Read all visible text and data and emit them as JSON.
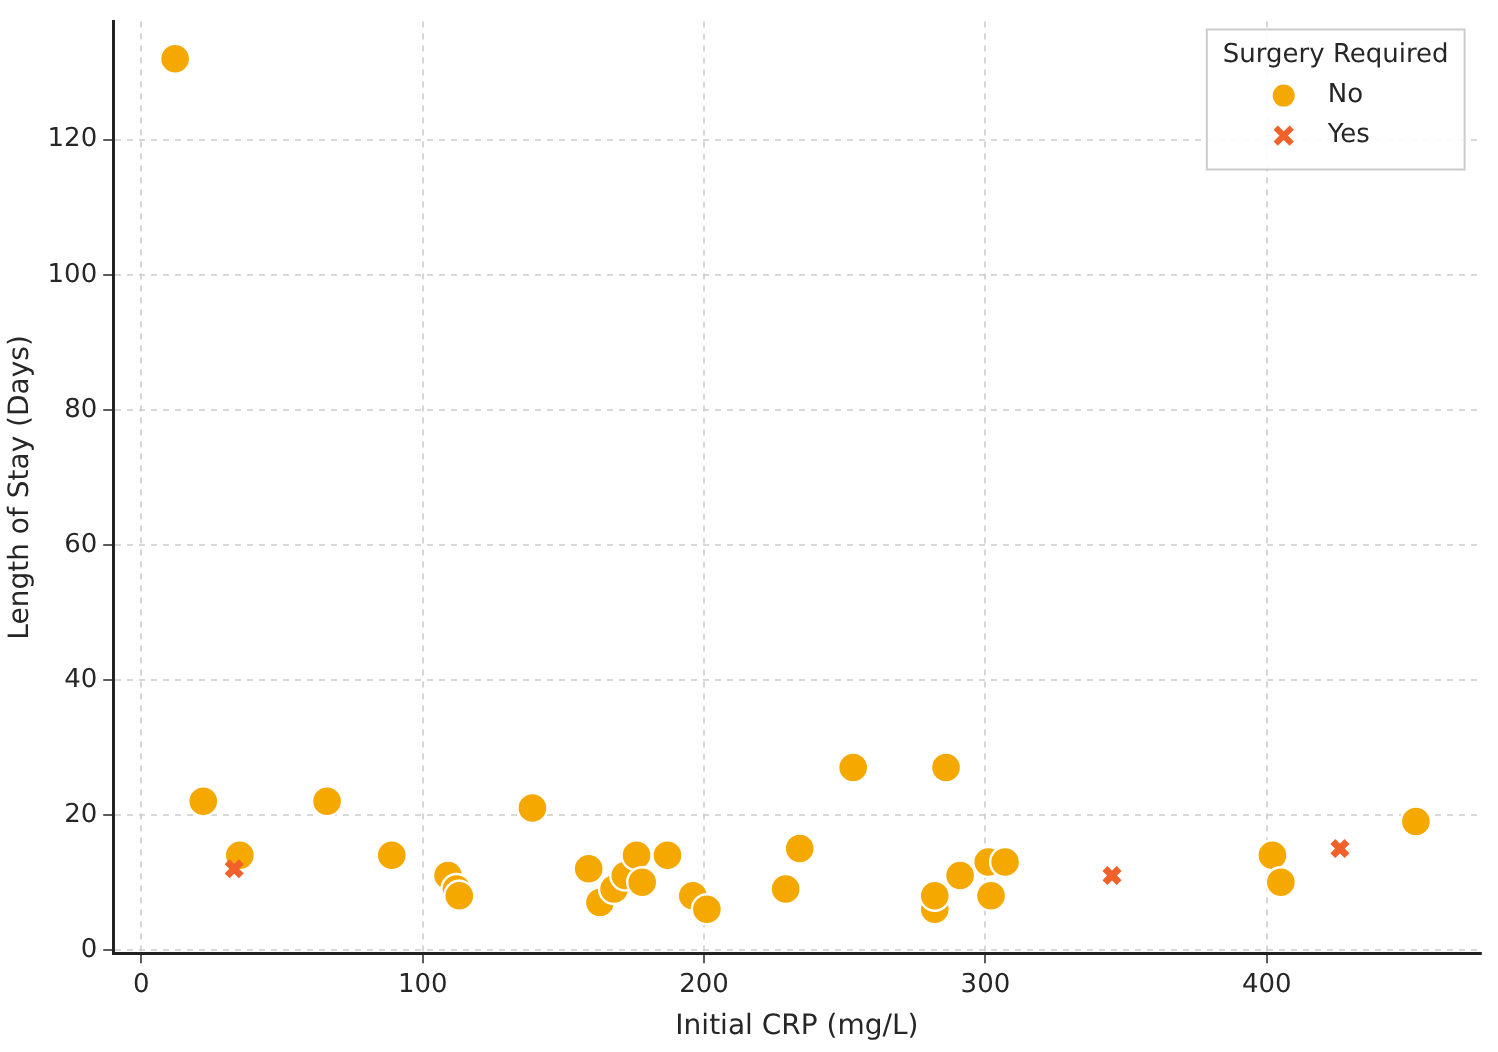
{
  "chart_data": {
    "type": "scatter",
    "xlabel": "Initial CRP (mg/L)",
    "ylabel": "Length of Stay (Days)",
    "legend_title": "Surgery Required",
    "legend": "top right",
    "grid": true,
    "xlim": [
      -10,
      476
    ],
    "xticks": [
      0,
      100,
      200,
      300,
      400
    ],
    "ylim": [
      -0.5,
      137.5
    ],
    "yticks": [
      0,
      20,
      40,
      60,
      80,
      100,
      120
    ],
    "series": [
      {
        "name": "No",
        "color": "#f5a800",
        "marker": "circle",
        "x": [
          12,
          22,
          66,
          35,
          89,
          139,
          109,
          112,
          113,
          159,
          163,
          168,
          172,
          176,
          178,
          187,
          196,
          201,
          229,
          234,
          253,
          286,
          282,
          282,
          291,
          301,
          307,
          302,
          402,
          405,
          453
        ],
        "values": [
          132,
          22,
          22,
          14,
          14,
          21,
          11,
          9,
          8,
          12,
          7,
          9,
          11,
          14,
          10,
          14,
          8,
          6,
          9,
          15,
          27,
          27,
          6,
          8,
          11,
          13,
          13,
          8,
          14,
          10,
          19
        ]
      },
      {
        "name": "Yes",
        "color": "#f0622a",
        "marker": "cross",
        "x": [
          33,
          345,
          426
        ],
        "values": [
          12,
          11,
          15
        ]
      }
    ]
  }
}
